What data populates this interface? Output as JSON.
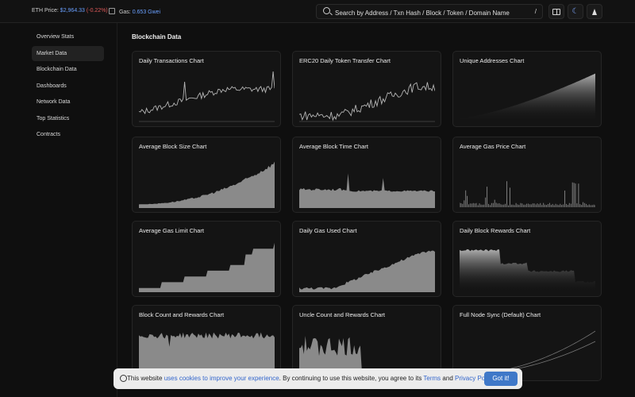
{
  "header": {
    "eth_price_label": "ETH Price:",
    "eth_price_value": "$2,964.33",
    "eth_price_change": "(-0.22%)",
    "gas_label": "Gas:",
    "gas_value": "0.653 Gwei",
    "search_placeholder": "Search by Address / Txn Hash / Block / Token / Domain Name",
    "search_shortcut": "/"
  },
  "sidebar": {
    "items": [
      {
        "label": "Overview Stats"
      },
      {
        "label": "Market Data"
      },
      {
        "label": "Blockchain Data"
      },
      {
        "label": "Dashboards"
      },
      {
        "label": "Network Data"
      },
      {
        "label": "Top Statistics"
      },
      {
        "label": "Contracts"
      }
    ]
  },
  "main": {
    "section_title": "Blockchain Data",
    "charts": [
      {
        "title": "Daily Transactions Chart",
        "style": "line"
      },
      {
        "title": "ERC20 Daily Token Transfer Chart",
        "style": "line"
      },
      {
        "title": "Unique Addresses Chart",
        "style": "area-grad"
      },
      {
        "title": "Average Block Size Chart",
        "style": "area"
      },
      {
        "title": "Average Block Time Chart",
        "style": "area"
      },
      {
        "title": "Average Gas Price Chart",
        "style": "spike"
      },
      {
        "title": "Average Gas Limit Chart",
        "style": "step"
      },
      {
        "title": "Daily Gas Used Chart",
        "style": "area"
      },
      {
        "title": "Daily Block Rewards Chart",
        "style": "area-grad"
      },
      {
        "title": "Block Count and Rewards Chart",
        "style": "area"
      },
      {
        "title": "Uncle Count and Rewards Chart",
        "style": "area"
      },
      {
        "title": "Full Node Sync (Default) Chart",
        "style": "curves"
      }
    ]
  },
  "cookie": {
    "text_1": "This website",
    "link_1": "uses cookies to improve your experience",
    "text_2": ". By continuing to use this website, you agree to its",
    "link_2": "Terms",
    "text_3": "and",
    "link_3": "Privacy Policy",
    "text_4": ".",
    "button": "Got it!"
  },
  "colors": {
    "accent": "#6aa0ff",
    "negative": "#e05a5a",
    "chart_fill": "#8a8a8a",
    "button": "#3f78c8"
  }
}
